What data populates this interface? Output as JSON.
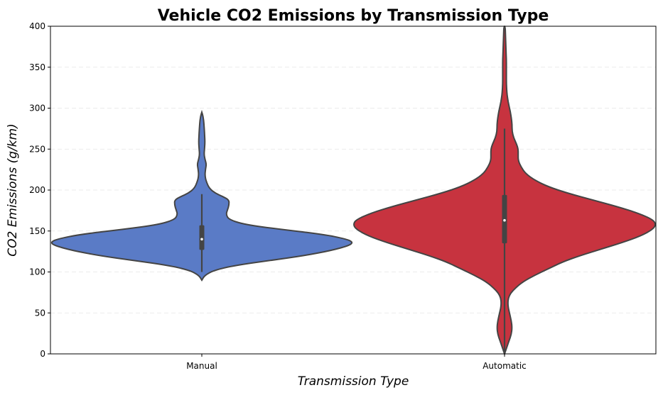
{
  "chart_data": {
    "type": "violin",
    "title": "Vehicle CO2 Emissions by Transmission Type",
    "xlabel": "Transmission Type",
    "ylabel": "CO2 Emissions (g/km)",
    "ylim": [
      0,
      400
    ],
    "yticks": [
      0,
      50,
      100,
      150,
      200,
      250,
      300,
      350,
      400
    ],
    "grid": "horizontal dashed",
    "categories": [
      "Manual",
      "Automatic"
    ],
    "series": [
      {
        "category": "Manual",
        "color": "#5a7bc6",
        "range": [
          90,
          295
        ],
        "whisker": [
          100,
          195
        ],
        "q1": 127,
        "median": 140,
        "q3": 157,
        "density_profile": [
          [
            90,
            0.0
          ],
          [
            96,
            0.02
          ],
          [
            102,
            0.08
          ],
          [
            108,
            0.22
          ],
          [
            114,
            0.45
          ],
          [
            120,
            0.68
          ],
          [
            126,
            0.85
          ],
          [
            132,
            0.97
          ],
          [
            136,
            1.0
          ],
          [
            140,
            0.96
          ],
          [
            146,
            0.8
          ],
          [
            152,
            0.52
          ],
          [
            158,
            0.28
          ],
          [
            164,
            0.18
          ],
          [
            170,
            0.16
          ],
          [
            176,
            0.17
          ],
          [
            182,
            0.18
          ],
          [
            188,
            0.18
          ],
          [
            192,
            0.14
          ],
          [
            196,
            0.09
          ],
          [
            202,
            0.05
          ],
          [
            210,
            0.03
          ],
          [
            218,
            0.02
          ],
          [
            226,
            0.025
          ],
          [
            232,
            0.03
          ],
          [
            238,
            0.02
          ],
          [
            244,
            0.015
          ],
          [
            250,
            0.018
          ],
          [
            256,
            0.02
          ],
          [
            262,
            0.02
          ],
          [
            270,
            0.018
          ],
          [
            278,
            0.015
          ],
          [
            285,
            0.012
          ],
          [
            290,
            0.008
          ],
          [
            295,
            0.0
          ]
        ]
      },
      {
        "category": "Automatic",
        "color": "#c7333f",
        "range": [
          0,
          400
        ],
        "whisker": [
          0,
          275
        ],
        "q1": 135,
        "median": 163,
        "q3": 194,
        "density_profile": [
          [
            0,
            0.0
          ],
          [
            8,
            0.015
          ],
          [
            16,
            0.03
          ],
          [
            24,
            0.045
          ],
          [
            32,
            0.05
          ],
          [
            40,
            0.045
          ],
          [
            48,
            0.035
          ],
          [
            56,
            0.025
          ],
          [
            62,
            0.022
          ],
          [
            68,
            0.025
          ],
          [
            74,
            0.04
          ],
          [
            80,
            0.07
          ],
          [
            88,
            0.12
          ],
          [
            96,
            0.2
          ],
          [
            104,
            0.29
          ],
          [
            112,
            0.38
          ],
          [
            120,
            0.5
          ],
          [
            128,
            0.64
          ],
          [
            136,
            0.78
          ],
          [
            144,
            0.9
          ],
          [
            152,
            0.98
          ],
          [
            158,
            1.0
          ],
          [
            164,
            0.98
          ],
          [
            172,
            0.88
          ],
          [
            180,
            0.74
          ],
          [
            188,
            0.58
          ],
          [
            196,
            0.42
          ],
          [
            204,
            0.29
          ],
          [
            212,
            0.2
          ],
          [
            220,
            0.14
          ],
          [
            228,
            0.11
          ],
          [
            236,
            0.09
          ],
          [
            244,
            0.09
          ],
          [
            250,
            0.09
          ],
          [
            256,
            0.08
          ],
          [
            264,
            0.06
          ],
          [
            272,
            0.05
          ],
          [
            280,
            0.05
          ],
          [
            288,
            0.045
          ],
          [
            296,
            0.038
          ],
          [
            304,
            0.028
          ],
          [
            312,
            0.02
          ],
          [
            320,
            0.015
          ],
          [
            330,
            0.012
          ],
          [
            340,
            0.012
          ],
          [
            350,
            0.012
          ],
          [
            360,
            0.012
          ],
          [
            370,
            0.01
          ],
          [
            380,
            0.008
          ],
          [
            390,
            0.006
          ],
          [
            400,
            0.004
          ]
        ]
      }
    ]
  }
}
